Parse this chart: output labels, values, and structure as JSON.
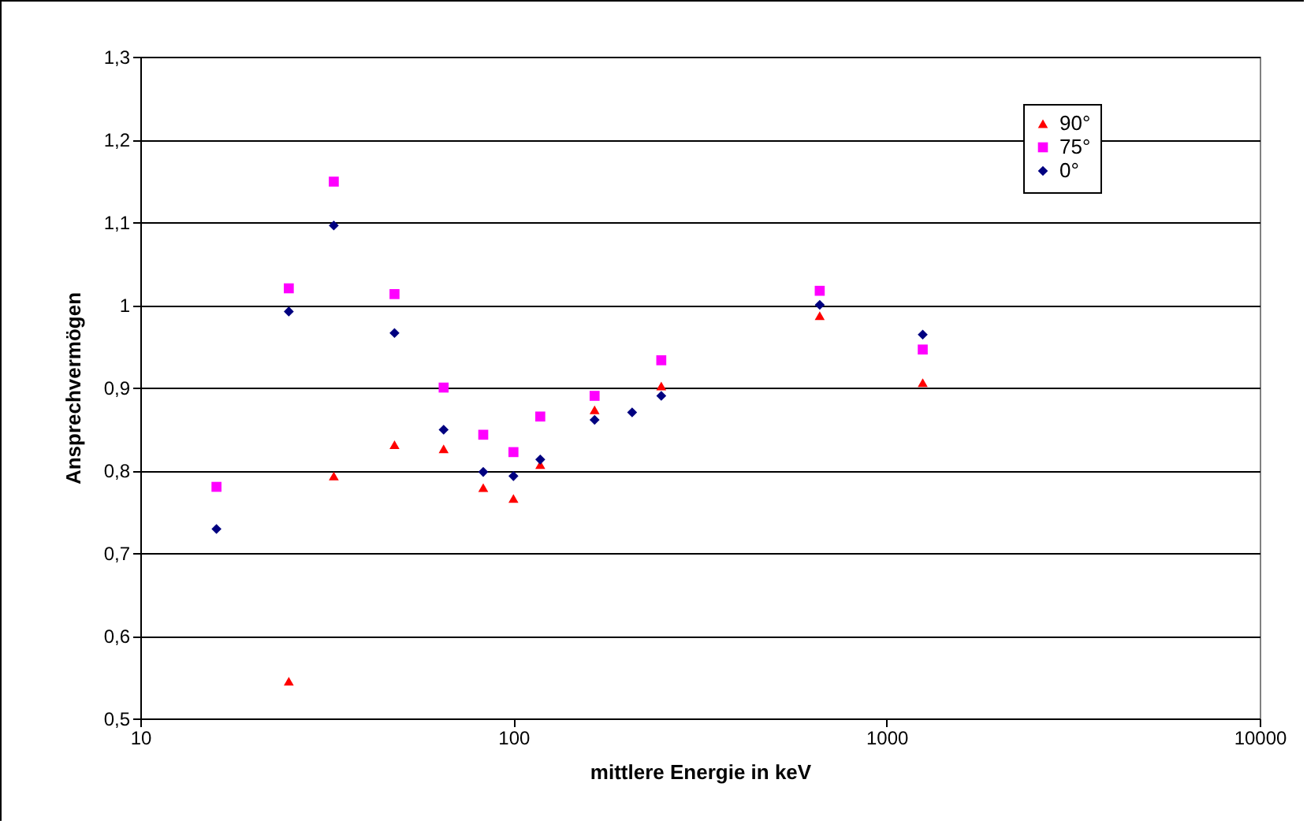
{
  "chart_data": {
    "type": "scatter",
    "xlabel": "mittlere Energie in keV",
    "ylabel": "Ansprechvermögen",
    "log": "x",
    "xlim": [
      10,
      10000
    ],
    "xticks": [
      10,
      100,
      1000,
      10000
    ],
    "ylim": [
      0.5,
      1.3
    ],
    "yticks": [
      {
        "value": 0.5,
        "label": "0,5"
      },
      {
        "value": 0.6,
        "label": "0,6"
      },
      {
        "value": 0.7,
        "label": "0,7"
      },
      {
        "value": 0.8,
        "label": "0,8"
      },
      {
        "value": 0.9,
        "label": "0,9"
      },
      1,
      {
        "value": 1.1,
        "label": "1,1"
      },
      {
        "value": 1.2,
        "label": "1,2"
      },
      {
        "value": 1.3,
        "label": "1,3"
      }
    ],
    "grid": "y",
    "legend": "top right",
    "series": [
      {
        "name": "90°",
        "color": "#ff0000",
        "marker": "triangle",
        "x": [
          25,
          33,
          48,
          65,
          83,
          100,
          118,
          165,
          249,
          662,
          1250
        ],
        "values": [
          0.545,
          0.793,
          0.831,
          0.826,
          0.779,
          0.766,
          0.807,
          0.873,
          0.902,
          0.987,
          0.906
        ]
      },
      {
        "name": "75°",
        "color": "#ff00ff",
        "marker": "square",
        "x": [
          16,
          25,
          33,
          48,
          65,
          83,
          100,
          118,
          165,
          249,
          662,
          1250
        ],
        "values": [
          0.78,
          1.02,
          1.149,
          1.013,
          0.9,
          0.843,
          0.822,
          0.865,
          0.89,
          0.933,
          1.017,
          0.946
        ]
      },
      {
        "name": "0°",
        "color": "#000080",
        "marker": "diamond",
        "x": [
          16,
          25,
          33,
          48,
          65,
          83,
          100,
          118,
          165,
          208,
          249,
          662,
          1250
        ],
        "values": [
          0.729,
          0.992,
          1.096,
          0.966,
          0.849,
          0.798,
          0.793,
          0.813,
          0.861,
          0.87,
          0.89,
          1.0,
          0.964
        ]
      }
    ]
  }
}
